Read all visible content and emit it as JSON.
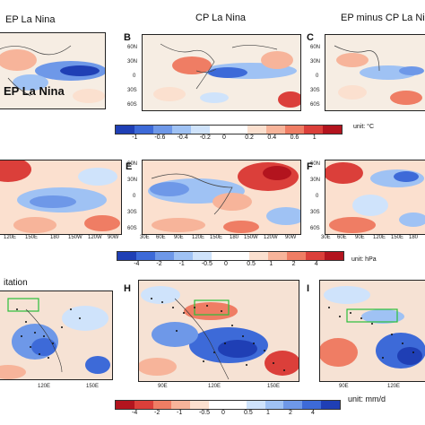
{
  "titles": {
    "ep_la_nina": "EP La Nina",
    "cp_la_nina": "CP La Nina",
    "ep_minus_cp": "EP minus CP La Nina",
    "precip_partial": "itation"
  },
  "panel_letters": {
    "b": "B",
    "c": "C",
    "e": "E",
    "f": "F",
    "h": "H",
    "i": "I"
  },
  "row1": {
    "lat_ticks": [
      "60N",
      "30N",
      "0",
      "30S",
      "60S"
    ],
    "colorbar": {
      "labels": [
        "-1",
        "-0.6",
        "-0.4",
        "-0.2",
        "0",
        "0.2",
        "0.4",
        "0.6",
        "1"
      ],
      "unit": "unit: °C",
      "colors": [
        "#1f3fb5",
        "#3d6ad8",
        "#6e98e8",
        "#9fc2f4",
        "#cfe3fb",
        "#ffffff",
        "#ffffff",
        "#fbe0cf",
        "#f7b49a",
        "#ef7d64",
        "#db3f3a",
        "#b3141e"
      ]
    }
  },
  "row2": {
    "lat_ticks": [
      "60N",
      "30N",
      "0",
      "30S",
      "60S"
    ],
    "lon_ticks_left": [
      "120E",
      "150E",
      "180",
      "150W",
      "120W",
      "90W"
    ],
    "lon_ticks_mid": [
      "30E",
      "60E",
      "90E",
      "120E",
      "150E",
      "180",
      "150W",
      "120W",
      "90W"
    ],
    "lon_ticks_right": [
      "30E",
      "60E",
      "90E",
      "120E",
      "150E",
      "180"
    ],
    "colorbar": {
      "labels": [
        "-4",
        "-2",
        "-1",
        "-0.5",
        "0",
        "0.5",
        "1",
        "2",
        "4"
      ],
      "unit": "unit: hPa",
      "colors": [
        "#1f3fb5",
        "#3d6ad8",
        "#6e98e8",
        "#9fc2f4",
        "#cfe3fb",
        "#ffffff",
        "#ffffff",
        "#fbe0cf",
        "#f7b49a",
        "#ef7d64",
        "#db3f3a",
        "#b3141e"
      ]
    }
  },
  "row3": {
    "lon_ticks_left": [
      "120E",
      "150E"
    ],
    "lon_ticks_mid": [
      "90E",
      "120E",
      "150E"
    ],
    "lon_ticks_right": [
      "90E",
      "120E"
    ],
    "colorbar": {
      "labels": [
        "-4",
        "-2",
        "-1",
        "-0.5",
        "0",
        "0.5",
        "1",
        "2",
        "4"
      ],
      "unit": "unit: mm/d",
      "colors": [
        "#b3141e",
        "#db3f3a",
        "#ef7d64",
        "#f7b49a",
        "#fbe0cf",
        "#ffffff",
        "#ffffff",
        "#cfe3fb",
        "#9fc2f4",
        "#6e98e8",
        "#3d6ad8",
        "#1f3fb5"
      ]
    }
  }
}
